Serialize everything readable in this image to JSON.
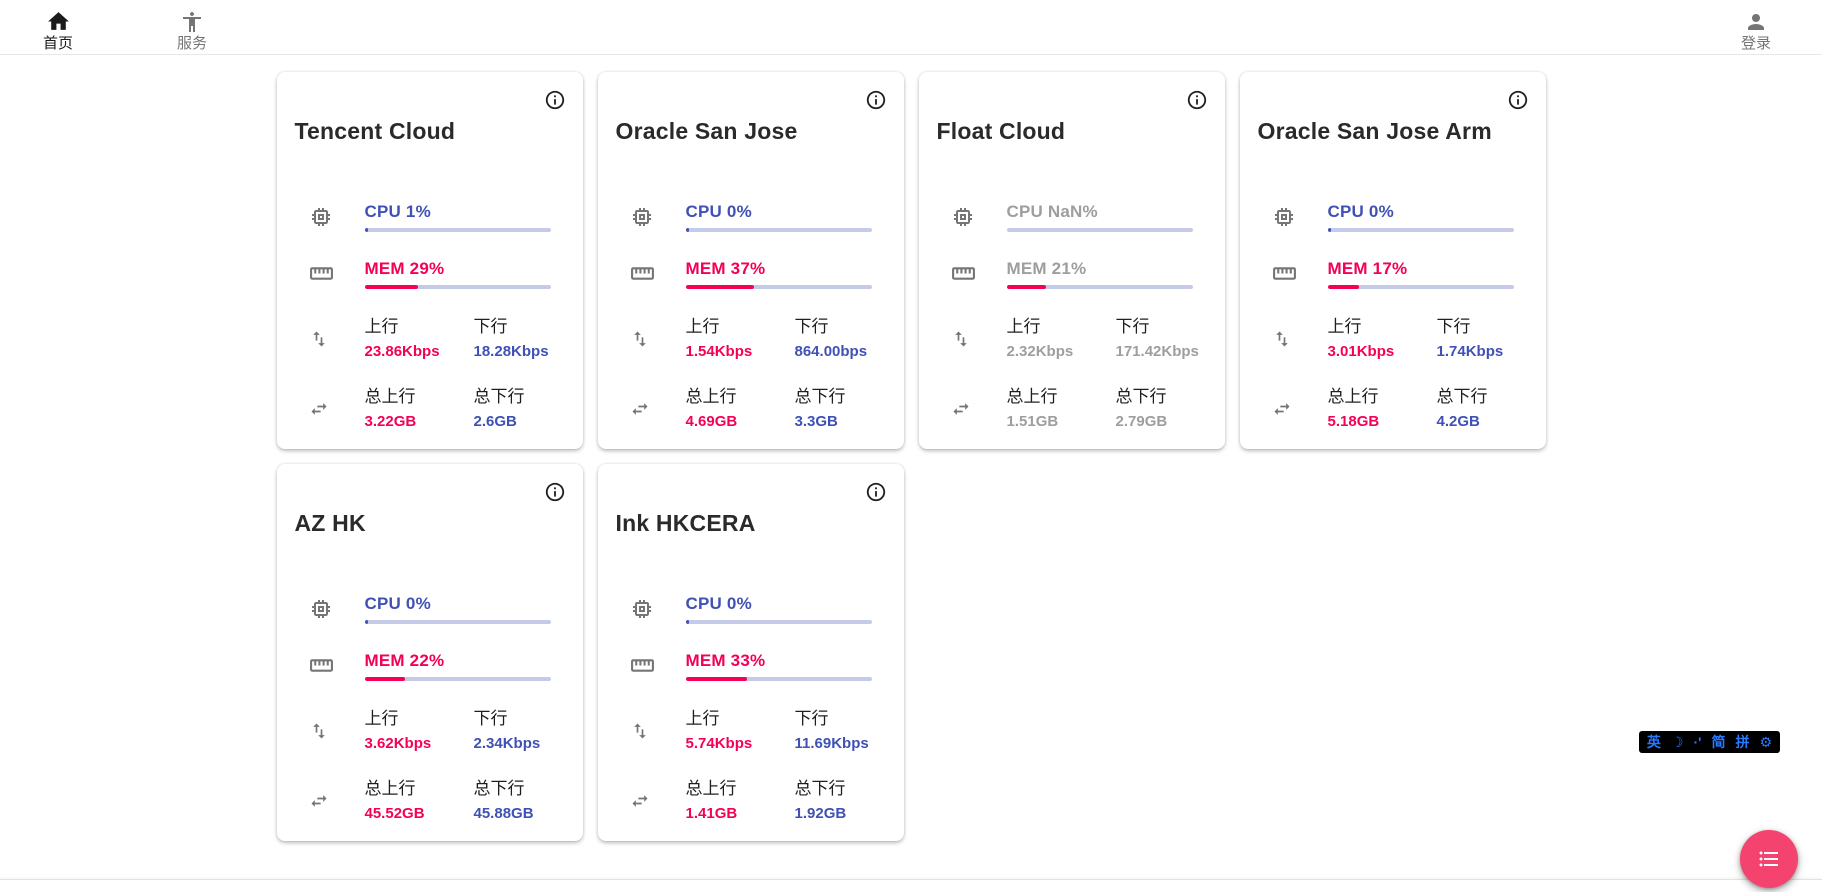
{
  "nav": {
    "home": {
      "label": "首页"
    },
    "services": {
      "label": "服务"
    },
    "login": {
      "label": "登录"
    }
  },
  "stat_labels": {
    "upload": "上行",
    "download": "下行",
    "total_upload": "总上行",
    "total_download": "总下行"
  },
  "servers": [
    {
      "name": "Tencent Cloud",
      "cpu_text": "CPU 1%",
      "cpu_pct": 1,
      "mem_text": "MEM 29%",
      "mem_pct": 29,
      "online": true,
      "upload": "23.86Kbps",
      "download": "18.28Kbps",
      "total_upload": "3.22GB",
      "total_download": "2.6GB"
    },
    {
      "name": "Oracle San Jose",
      "cpu_text": "CPU 0%",
      "cpu_pct": 0,
      "mem_text": "MEM 37%",
      "mem_pct": 37,
      "online": true,
      "upload": "1.54Kbps",
      "download": "864.00bps",
      "total_upload": "4.69GB",
      "total_download": "3.3GB"
    },
    {
      "name": "Float Cloud",
      "cpu_text": "CPU NaN%",
      "cpu_pct": null,
      "mem_text": "MEM 21%",
      "mem_pct": 21,
      "online": false,
      "upload": "2.32Kbps",
      "download": "171.42Kbps",
      "total_upload": "1.51GB",
      "total_download": "2.79GB"
    },
    {
      "name": "Oracle San Jose Arm",
      "cpu_text": "CPU 0%",
      "cpu_pct": 0,
      "mem_text": "MEM 17%",
      "mem_pct": 17,
      "online": true,
      "upload": "3.01Kbps",
      "download": "1.74Kbps",
      "total_upload": "5.18GB",
      "total_download": "4.2GB"
    },
    {
      "name": "AZ HK",
      "cpu_text": "CPU 0%",
      "cpu_pct": 0,
      "mem_text": "MEM 22%",
      "mem_pct": 22,
      "online": true,
      "upload": "3.62Kbps",
      "download": "2.34Kbps",
      "total_upload": "45.52GB",
      "total_download": "45.88GB"
    },
    {
      "name": "Ink HKCERA",
      "cpu_text": "CPU 0%",
      "cpu_pct": 0,
      "mem_text": "MEM 33%",
      "mem_pct": 33,
      "online": true,
      "upload": "5.74Kbps",
      "download": "11.69Kbps",
      "total_upload": "1.41GB",
      "total_download": "1.92GB"
    }
  ],
  "ime_bar": {
    "items": [
      "英",
      "☽",
      "·'",
      "简",
      "拼",
      "⚙"
    ]
  },
  "icons": [
    "home-icon",
    "services-person-icon",
    "login-person-icon",
    "info-icon",
    "cpu-chip-icon",
    "memory-ruler-icon",
    "swap-vertical-icon",
    "swap-horizontal-icon",
    "list-icon",
    "moon-icon",
    "gear-icon"
  ],
  "colors": {
    "accent_blue": "#3f51b5",
    "accent_pink": "#f50057",
    "bar_track": "#c5cae9",
    "offline_gray": "#9e9e9e",
    "icon_gray": "#757575",
    "fab_pink": "#f4436f",
    "ime_blue": "#2979ff"
  }
}
